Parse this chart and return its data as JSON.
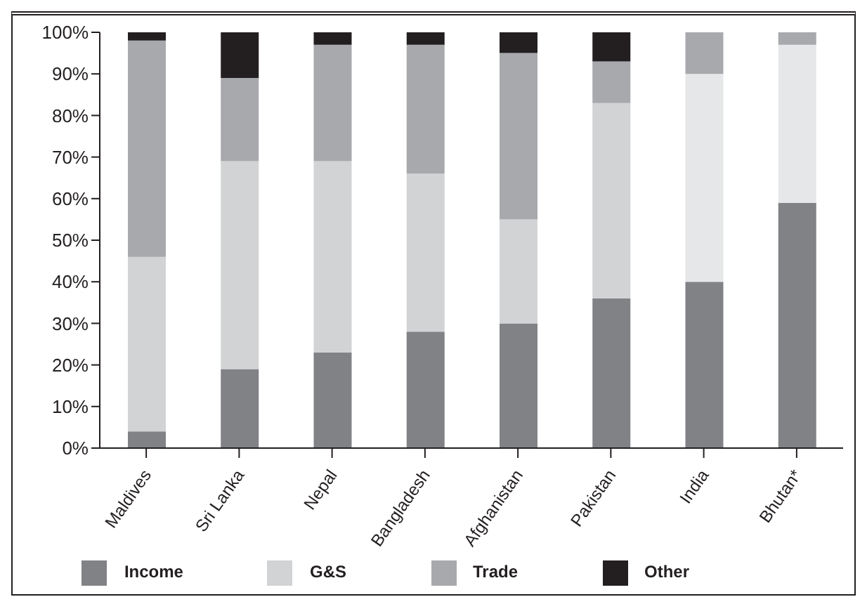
{
  "chart_data": {
    "type": "bar",
    "stacked": true,
    "categories": [
      "Maldives",
      "Sri Lanka",
      "Nepal",
      "Bangladesh",
      "Afghanistan",
      "Pakistan",
      "India",
      "Bhutan*"
    ],
    "series": [
      {
        "name": "Income",
        "color": "#808285",
        "values": [
          4,
          19,
          23,
          28,
          30,
          36,
          40,
          59
        ]
      },
      {
        "name": "G&S",
        "color": "#d1d3d4",
        "colors": [
          "#d1d3d4",
          "#d1d3d4",
          "#d1d3d4",
          "#d1d3d4",
          "#d1d3d4",
          "#d1d3d4",
          "#e6e7e8",
          "#e6e7e8"
        ],
        "values": [
          42,
          50,
          46,
          38,
          25,
          47,
          50,
          38
        ]
      },
      {
        "name": "Trade",
        "color": "#a7a9ac",
        "values": [
          52,
          20,
          28,
          31,
          40,
          10,
          10,
          3
        ]
      },
      {
        "name": "Other",
        "color": "#231f20",
        "values": [
          2,
          11,
          3,
          3,
          5,
          7,
          0,
          0
        ]
      }
    ],
    "ylim": [
      0,
      100
    ],
    "yticks": [
      {
        "value": 0,
        "label": "0%"
      },
      {
        "value": 10,
        "label": "10%"
      },
      {
        "value": 20,
        "label": "20%"
      },
      {
        "value": 30,
        "label": "30%"
      },
      {
        "value": 40,
        "label": "40%"
      },
      {
        "value": 50,
        "label": "50%"
      },
      {
        "value": 60,
        "label": "60%"
      },
      {
        "value": 70,
        "label": "70%"
      },
      {
        "value": 80,
        "label": "80%"
      },
      {
        "value": 90,
        "label": "90%"
      },
      {
        "value": 100,
        "label": "100%"
      }
    ],
    "grid": false,
    "legend": "bottom"
  }
}
